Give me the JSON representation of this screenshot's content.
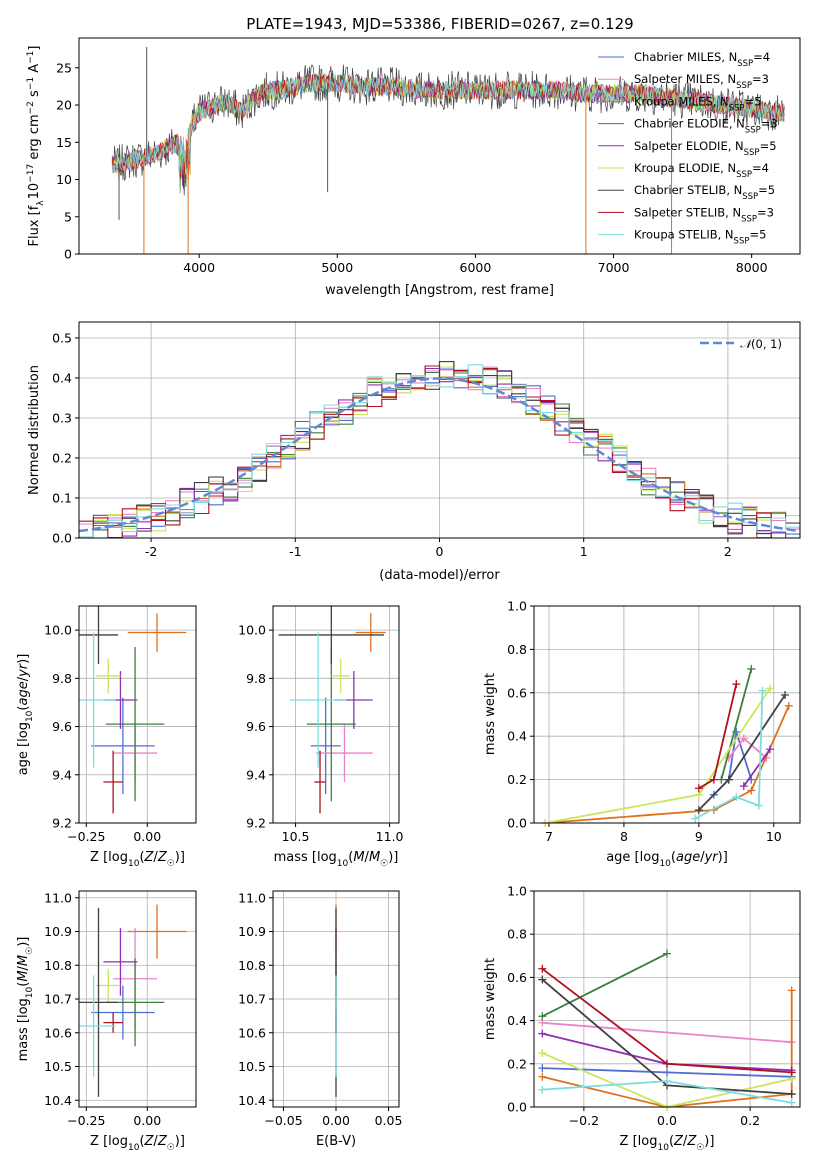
{
  "figure": {
    "title": "PLATE=1943, MJD=53386, FIBERID=0267, z=0.129"
  },
  "chart_data": [
    {
      "panel": "spectrum",
      "type": "line",
      "xlabel": "wavelength [Angstrom, rest frame]",
      "ylabel": "Flux [f_λ 10^-17 erg cm^-2 s^-1 A^-1]",
      "xlim": [
        3130,
        8350
      ],
      "ylim": [
        0,
        29
      ],
      "xticks": [
        4000,
        5000,
        6000,
        7000,
        8000
      ],
      "yticks": [
        0,
        5,
        10,
        15,
        20,
        25
      ],
      "grid": false,
      "legend_position": "right",
      "series": [
        {
          "name": "Chabrier MILES, N_SSP=4",
          "label_text": "Chabrier MILES, N",
          "sub": "SSP",
          "suffix": "=4",
          "color": "#4f6fd3"
        },
        {
          "name": "Salpeter MILES, N_SSP=3",
          "label_text": "Salpeter MILES, N",
          "sub": "SSP",
          "suffix": "=3",
          "color": "#ee82c8"
        },
        {
          "name": "Kroupa MILES, N_SSP=5",
          "label_text": "Kroupa MILES, N",
          "sub": "SSP",
          "suffix": "=5",
          "color": "#e0701b"
        },
        {
          "name": "Chabrier ELODIE, N_SSP=3",
          "label_text": "Chabrier ELODIE, N",
          "sub": "SSP",
          "suffix": "=3",
          "color": "#3f7f3f"
        },
        {
          "name": "Salpeter ELODIE, N_SSP=5",
          "label_text": "Salpeter ELODIE, N",
          "sub": "SSP",
          "suffix": "=5",
          "color": "#8f2fb3"
        },
        {
          "name": "Kroupa ELODIE, N_SSP=4",
          "label_text": "Kroupa ELODIE, N",
          "sub": "SSP",
          "suffix": "=4",
          "color": "#c9e65c"
        },
        {
          "name": "Chabrier STELIB, N_SSP=5",
          "label_text": "Chabrier STELIB, N",
          "sub": "SSP",
          "suffix": "=5",
          "color": "#404040"
        },
        {
          "name": "Salpeter STELIB, N_SSP=3",
          "label_text": "Salpeter STELIB, N",
          "sub": "SSP",
          "suffix": "=3",
          "color": "#b0101f"
        },
        {
          "name": "Kroupa STELIB, N_SSP=5",
          "label_text": "Kroupa STELIB, N",
          "sub": "SSP",
          "suffix": "=5",
          "color": "#7fdcdc"
        }
      ],
      "continuum": {
        "x": [
          3400,
          3500,
          3600,
          3700,
          3800,
          3900,
          4000,
          4100,
          4200,
          4300,
          4400,
          4500,
          4600,
          4700,
          4800,
          4900,
          5000,
          5200,
          5400,
          5600,
          5800,
          6000,
          6200,
          6400,
          6600,
          6800,
          7000,
          7200,
          7400,
          7600,
          7800,
          8000,
          8200
        ],
        "y": [
          12,
          12.5,
          13,
          13.5,
          14.5,
          15.5,
          19,
          20,
          20.5,
          19,
          21,
          22,
          22,
          22.5,
          23,
          23,
          23,
          22.5,
          22.5,
          22,
          22,
          22,
          22,
          22,
          22,
          21.5,
          21.5,
          21.5,
          21,
          20.5,
          20,
          19.5,
          19
        ]
      },
      "spikes": [
        {
          "x": 3420,
          "y": 4.6
        },
        {
          "x": 3600,
          "y": 0
        },
        {
          "x": 3620,
          "y": 27.8
        },
        {
          "x": 3920,
          "y": 0
        },
        {
          "x": 4930,
          "y": 8.3
        },
        {
          "x": 6800,
          "y": 0
        },
        {
          "x": 7420,
          "y": 0
        }
      ]
    },
    {
      "panel": "residual-distribution",
      "type": "line",
      "xlabel": "(data-model)/error",
      "ylabel": "Normed distribution",
      "xlim": [
        -2.5,
        2.5
      ],
      "ylim": [
        0,
        0.54
      ],
      "xticks": [
        -2,
        -1,
        0,
        1,
        2
      ],
      "yticks": [
        0.0,
        0.1,
        0.2,
        0.3,
        0.4,
        0.5
      ],
      "grid": true,
      "legend_position": "top-right",
      "reference_curve": {
        "name": "N(0,1)",
        "color": "#5b8bd6"
      },
      "histogram_bin_width": 0.1,
      "histogram_envelope": {
        "x": [
          -2.5,
          -2.0,
          -1.5,
          -1.0,
          -0.5,
          0.0,
          0.5,
          1.0,
          1.5,
          2.0,
          2.5
        ],
        "y": [
          0.02,
          0.05,
          0.12,
          0.24,
          0.36,
          0.41,
          0.38,
          0.26,
          0.13,
          0.05,
          0.02
        ]
      }
    },
    {
      "panel": "age-vs-Z",
      "type": "scatter",
      "xlabel": "Z [log10(Z/Z☉)]",
      "ylabel": "age [log10(age/yr)]",
      "xlim": [
        -0.28,
        0.2
      ],
      "ylim": [
        9.2,
        10.1
      ],
      "xticks": [
        -0.25,
        0.0
      ],
      "xtick_labels": [
        "−0.25",
        "0.00"
      ],
      "yticks": [
        9.2,
        9.4,
        9.6,
        9.8,
        10.0
      ],
      "grid": true
    },
    {
      "panel": "age-vs-mass",
      "type": "scatter",
      "xlabel": "mass [log10(M/M☉)]",
      "ylabel": "",
      "xlim": [
        10.38,
        11.05
      ],
      "ylim": [
        9.2,
        10.1
      ],
      "xticks": [
        10.5,
        11.0
      ],
      "xtick_labels": [
        "10.5",
        "11.0"
      ],
      "yticks": [
        9.2,
        9.4,
        9.6,
        9.8,
        10.0
      ],
      "grid": true
    },
    {
      "panel": "mass-weight-vs-age",
      "type": "line",
      "xlabel": "age [log10(age/yr)]",
      "ylabel": "mass weight",
      "xlim": [
        6.8,
        10.35
      ],
      "ylim": [
        0,
        1
      ],
      "xticks": [
        7,
        8,
        9,
        10
      ],
      "yticks": [
        0.0,
        0.2,
        0.4,
        0.6,
        0.8,
        1.0
      ],
      "grid": true
    },
    {
      "panel": "mass-vs-Z",
      "type": "scatter",
      "xlabel": "Z [log10(Z/Z☉)]",
      "ylabel": "mass [log10(M/M☉)]",
      "xlim": [
        -0.28,
        0.2
      ],
      "ylim": [
        10.38,
        11.02
      ],
      "xticks": [
        -0.25,
        0.0
      ],
      "xtick_labels": [
        "−0.25",
        "0.00"
      ],
      "yticks": [
        10.4,
        10.5,
        10.6,
        10.7,
        10.8,
        10.9,
        11.0
      ],
      "grid": true
    },
    {
      "panel": "mass-vs-EBV",
      "type": "scatter",
      "xlabel": "E(B-V)",
      "ylabel": "",
      "xlim": [
        -0.06,
        0.06
      ],
      "ylim": [
        10.38,
        11.02
      ],
      "xticks": [
        -0.05,
        0.0,
        0.05
      ],
      "xtick_labels": [
        "−0.05",
        "0.00",
        "0.05"
      ],
      "yticks": [
        10.4,
        10.5,
        10.6,
        10.7,
        10.8,
        10.9,
        11.0
      ],
      "grid": true
    },
    {
      "panel": "mass-weight-vs-Z",
      "type": "line",
      "xlabel": "Z [log10(Z/Z☉)]",
      "ylabel": "mass weight",
      "xlim": [
        -0.32,
        0.32
      ],
      "ylim": [
        0,
        1
      ],
      "xticks": [
        -0.2,
        0.0,
        0.2
      ],
      "xtick_labels": [
        "−0.2",
        "0.0",
        "0.2"
      ],
      "yticks": [
        0.0,
        0.2,
        0.4,
        0.6,
        0.8,
        1.0
      ],
      "grid": true
    }
  ],
  "fits": [
    {
      "color": "#4f6fd3",
      "age": 9.52,
      "age_err": 0.2,
      "Z": -0.1,
      "Z_err": 0.13,
      "mass": 10.66,
      "mass_err": 0.08,
      "mass_d": 10.66,
      "mass_d_err": 0.06,
      "ebv": 0.0,
      "age_w": [
        [
          9.2,
          0.13
        ],
        [
          9.4,
          0.2
        ],
        [
          9.5,
          0.42
        ],
        [
          9.7,
          0.2
        ]
      ],
      "Z_w": [
        [
          -0.3,
          0.18
        ],
        [
          0.0,
          0.16
        ],
        [
          0.3,
          0.14
        ]
      ]
    },
    {
      "color": "#ee82c8",
      "age": 9.49,
      "age_err": 0.12,
      "Z": -0.05,
      "Z_err": 0.09,
      "mass": 10.76,
      "mass_err": 0.15,
      "mass_d": 10.76,
      "mass_d_err": 0.05,
      "ebv": 0.0,
      "age_w": [
        [
          9.4,
          0.3
        ],
        [
          9.6,
          0.39
        ],
        [
          9.9,
          0.3
        ]
      ],
      "Z_w": [
        [
          -0.3,
          0.39
        ],
        [
          0.3,
          0.3
        ]
      ]
    },
    {
      "color": "#e0701b",
      "age": 9.99,
      "age_err": 0.08,
      "Z": 0.04,
      "Z_err": 0.12,
      "mass": 10.9,
      "mass_err": 0.08,
      "mass_d": 10.9,
      "mass_d_err": 0.08,
      "ebv": 0.0,
      "age_w": [
        [
          6.95,
          0.0
        ],
        [
          9.2,
          0.06
        ],
        [
          9.7,
          0.15
        ],
        [
          10.2,
          0.54
        ]
      ],
      "Z_w": [
        [
          -0.3,
          0.14
        ],
        [
          0.0,
          0.0
        ],
        [
          0.3,
          0.06
        ],
        [
          0.3,
          0.54
        ]
      ]
    },
    {
      "color": "#3f7f3f",
      "age": 9.61,
      "age_err": 0.32,
      "Z": -0.05,
      "Z_err": 0.12,
      "mass": 10.69,
      "mass_err": 0.13,
      "mass_d": 10.69,
      "mass_d_err": 0.09,
      "ebv": 0.0,
      "age_w": [
        [
          9.3,
          0.2
        ],
        [
          9.7,
          0.71
        ]
      ],
      "Z_w": [
        [
          -0.3,
          0.42
        ],
        [
          0.0,
          0.71
        ]
      ]
    },
    {
      "color": "#8f2fb3",
      "age": 9.71,
      "age_err": 0.12,
      "Z": -0.11,
      "Z_err": 0.07,
      "mass": 10.81,
      "mass_err": 0.1,
      "mass_d": 10.81,
      "mass_d_err": 0.1,
      "ebv": 0.0,
      "age_w": [
        [
          9.6,
          0.17
        ],
        [
          9.95,
          0.34
        ]
      ],
      "Z_w": [
        [
          -0.3,
          0.34
        ],
        [
          0.0,
          0.2
        ],
        [
          0.3,
          0.17
        ]
      ]
    },
    {
      "color": "#c9e65c",
      "age": 9.81,
      "age_err": 0.07,
      "Z": -0.16,
      "Z_err": 0.05,
      "mass": 10.74,
      "mass_err": 0.05,
      "mass_d": 10.73,
      "mass_d_err": 0.05,
      "ebv": 0.0,
      "age_w": [
        [
          6.95,
          0.0
        ],
        [
          9.0,
          0.13
        ],
        [
          9.95,
          0.62
        ]
      ],
      "Z_w": [
        [
          -0.3,
          0.25
        ],
        [
          0.0,
          0.0
        ],
        [
          0.3,
          0.13
        ]
      ]
    },
    {
      "color": "#404040",
      "age": 9.98,
      "age_err": 0.12,
      "Z": -0.2,
      "Z_err": 0.08,
      "mass": 10.69,
      "mass_err": 0.28,
      "mass_d": 10.69,
      "mass_d_err": 0.28,
      "ebv": 0.0,
      "age_w": [
        [
          9.0,
          0.06
        ],
        [
          9.4,
          0.2
        ],
        [
          10.15,
          0.59
        ]
      ],
      "Z_w": [
        [
          -0.3,
          0.59
        ],
        [
          0.0,
          0.1
        ],
        [
          0.3,
          0.06
        ]
      ]
    },
    {
      "color": "#b0101f",
      "age": 9.37,
      "age_err": 0.13,
      "Z": -0.14,
      "Z_err": 0.04,
      "mass": 10.63,
      "mass_err": 0.03,
      "mass_d": 10.63,
      "mass_d_err": 0.03,
      "ebv": 0.0,
      "age_w": [
        [
          9.0,
          0.16
        ],
        [
          9.2,
          0.2
        ],
        [
          9.5,
          0.64
        ]
      ],
      "Z_w": [
        [
          -0.3,
          0.64
        ],
        [
          0.0,
          0.2
        ],
        [
          0.3,
          0.16
        ]
      ]
    },
    {
      "color": "#7fdcdc",
      "age": 9.71,
      "age_err": 0.28,
      "Z": -0.22,
      "Z_err": 0.09,
      "mass": 10.62,
      "mass_err": 0.15,
      "mass_d": 10.62,
      "mass_d_err": 0.15,
      "ebv": 0.0,
      "age_w": [
        [
          8.95,
          0.02
        ],
        [
          9.5,
          0.12
        ],
        [
          9.8,
          0.08
        ],
        [
          9.85,
          0.61
        ]
      ],
      "Z_w": [
        [
          -0.3,
          0.08
        ],
        [
          0.0,
          0.12
        ],
        [
          0.3,
          0.02
        ]
      ]
    }
  ]
}
